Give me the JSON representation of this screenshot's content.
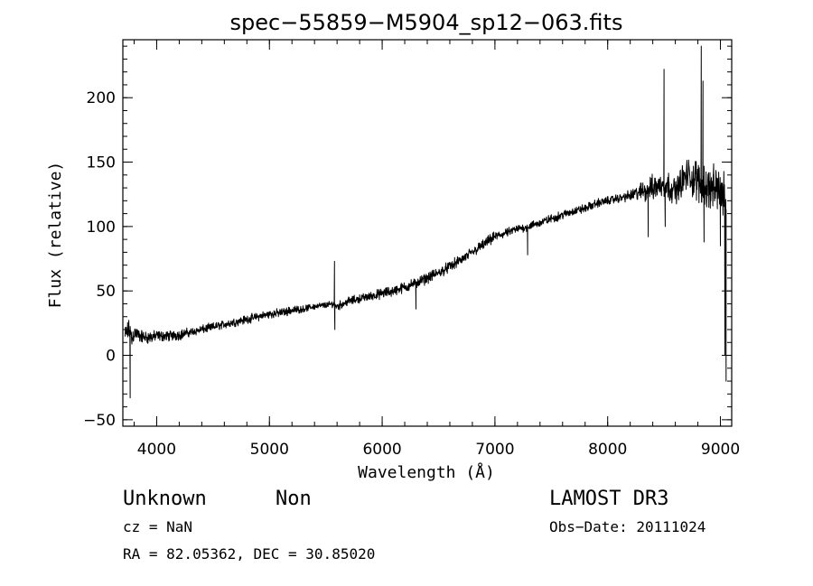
{
  "chart_data": {
    "type": "line",
    "title": "spec−55859−M5904_sp12−063.fits",
    "xlabel": "Wavelength (Å)",
    "ylabel": "Flux (relative)",
    "xlim": [
      3700,
      9100
    ],
    "ylim": [
      -55,
      245
    ],
    "x_ticks": [
      4000,
      5000,
      6000,
      7000,
      8000,
      9000
    ],
    "x_tick_labels": [
      "4000",
      "5000",
      "6000",
      "7000",
      "8000",
      "9000"
    ],
    "y_ticks": [
      -50,
      0,
      50,
      100,
      150,
      200
    ],
    "y_tick_labels": [
      "−50",
      "0",
      "50",
      "100",
      "150",
      "200"
    ],
    "x_minor_step": 200,
    "y_minor_step": 10,
    "grid": false,
    "series": [
      {
        "name": "flux",
        "x": [
          3720,
          3740,
          3760,
          3780,
          3800,
          3850,
          3900,
          3950,
          4000,
          4100,
          4200,
          4300,
          4400,
          4500,
          4600,
          4700,
          4800,
          4900,
          5000,
          5100,
          5200,
          5300,
          5400,
          5500,
          5570,
          5600,
          5700,
          5800,
          5900,
          6000,
          6100,
          6200,
          6300,
          6400,
          6500,
          6600,
          6700,
          6800,
          6900,
          7000,
          7100,
          7200,
          7300,
          7400,
          7500,
          7600,
          7700,
          7800,
          7900,
          8000,
          8100,
          8200,
          8300,
          8400,
          8500,
          8600,
          8700,
          8800,
          8900,
          9000,
          9050
        ],
        "y": [
          15,
          18,
          20,
          12,
          18,
          15,
          14,
          14,
          15,
          15,
          16,
          18,
          20,
          22,
          24,
          26,
          28,
          30,
          32,
          33,
          35,
          36,
          38,
          39,
          40,
          38,
          42,
          44,
          46,
          48,
          50,
          53,
          56,
          60,
          64,
          69,
          74,
          80,
          86,
          92,
          95,
          98,
          100,
          103,
          106,
          109,
          112,
          114,
          118,
          120,
          122,
          124,
          127,
          130,
          133,
          128,
          140,
          135,
          130,
          128,
          120
        ],
        "noise": [
          10,
          10,
          10,
          10,
          8,
          6,
          6,
          6,
          5,
          5,
          5,
          4,
          4,
          4,
          4,
          4,
          4,
          4,
          4,
          4,
          4,
          3,
          3,
          3,
          3,
          4,
          4,
          4,
          4,
          5,
          5,
          5,
          5,
          5,
          5,
          5,
          5,
          5,
          5,
          5,
          4,
          4,
          4,
          4,
          4,
          4,
          4,
          4,
          4,
          4,
          4,
          5,
          9,
          12,
          14,
          12,
          16,
          20,
          20,
          22,
          20
        ]
      }
    ],
    "features": [
      {
        "x": 3765,
        "y": -33
      },
      {
        "x": 5577,
        "y": 73
      },
      {
        "x": 5580,
        "y": 20
      },
      {
        "x": 6300,
        "y": 36
      },
      {
        "x": 7290,
        "y": 78
      },
      {
        "x": 8360,
        "y": 92
      },
      {
        "x": 8500,
        "y": 222
      },
      {
        "x": 8510,
        "y": 100
      },
      {
        "x": 8830,
        "y": 240
      },
      {
        "x": 8845,
        "y": 213
      },
      {
        "x": 8855,
        "y": 88
      },
      {
        "x": 9000,
        "y": 85
      },
      {
        "x": 9040,
        "y": 0
      },
      {
        "x": 9050,
        "y": -20
      }
    ]
  },
  "info": {
    "object_class": "Unknown",
    "object_subclass": "Non",
    "survey": "LAMOST DR3",
    "redshift": "cz = NaN",
    "obs_date": "Obs−Date: 20111024",
    "coordinates": "RA =  82.05362, DEC =  30.85020"
  },
  "colors": {
    "line": "#000000",
    "background": "#ffffff"
  }
}
